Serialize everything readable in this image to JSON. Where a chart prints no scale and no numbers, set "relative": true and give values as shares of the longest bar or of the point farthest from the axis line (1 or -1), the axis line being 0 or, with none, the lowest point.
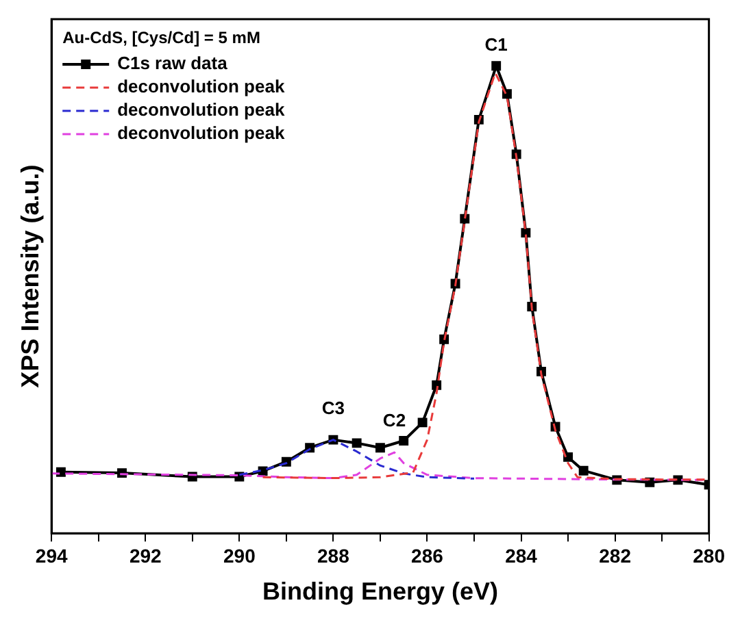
{
  "chart_data": {
    "type": "line",
    "relative": true,
    "legend_title": "Au-CdS, [Cys/Cd] = 5 mM",
    "xlabel": "Binding Energy (eV)",
    "ylabel": "XPS Intensity (a.u.)",
    "xlim": [
      294,
      280
    ],
    "xticks": [
      294,
      {
        "value": 293,
        "label": null
      },
      292,
      {
        "value": 291,
        "label": null
      },
      290,
      {
        "value": 289,
        "label": null
      },
      288,
      {
        "value": 287,
        "label": null
      },
      286,
      {
        "value": 285,
        "label": null
      },
      284,
      {
        "value": 283,
        "label": null
      },
      282,
      {
        "value": 281,
        "label": null
      },
      280
    ],
    "grid": false,
    "legend": "top left",
    "annotations": [
      {
        "text": "C1",
        "x": 284.53,
        "y": 1
      },
      {
        "text": "C2",
        "x": 286.7,
        "y": 0.173
      },
      {
        "text": "C3",
        "x": 288,
        "y": 0.2
      }
    ],
    "series": [
      {
        "name": "C1s raw data",
        "color": "#000000",
        "marker": "square",
        "line_style": "solid",
        "x": [
          293.8,
          292.5,
          291,
          290,
          289.5,
          289,
          288.5,
          288,
          287.5,
          287,
          286.5,
          286.1,
          285.8,
          285.64,
          285.4,
          285.2,
          284.9,
          284.53,
          284.3,
          284.1,
          283.9,
          283.77,
          283.57,
          283.27,
          283,
          282.67,
          281.96,
          281.26,
          280.66,
          280
        ],
        "values": [
          0.131,
          0.129,
          0.121,
          0.121,
          0.133,
          0.153,
          0.183,
          0.2,
          0.193,
          0.183,
          0.198,
          0.237,
          0.317,
          0.415,
          0.534,
          0.673,
          0.885,
          1,
          0.94,
          0.811,
          0.643,
          0.485,
          0.346,
          0.228,
          0.163,
          0.134,
          0.114,
          0.109,
          0.114,
          0.104
        ]
      },
      {
        "name": "deconvolution peak",
        "color": "#e83a3a",
        "marker": "none",
        "line_style": "dashed",
        "x": [
          289.5,
          288,
          287,
          286.3,
          286,
          285.8,
          285.64,
          285.4,
          285.2,
          284.9,
          284.55,
          284.3,
          284.1,
          283.9,
          283.77,
          283.57,
          283.27,
          283,
          282.8,
          282,
          281,
          280
        ],
        "values": [
          0.12,
          0.118,
          0.12,
          0.13,
          0.2,
          0.3,
          0.41,
          0.53,
          0.67,
          0.88,
          0.985,
          0.935,
          0.805,
          0.64,
          0.48,
          0.34,
          0.22,
          0.15,
          0.12,
          0.116,
          0.115,
          0.115
        ]
      },
      {
        "name": "deconvolution peak",
        "color": "#2a2ad0",
        "marker": "none",
        "line_style": "dashed",
        "x": [
          290,
          289.5,
          289,
          288.5,
          288,
          287.5,
          287,
          286.5,
          286,
          285
        ],
        "values": [
          0.125,
          0.135,
          0.15,
          0.18,
          0.2,
          0.175,
          0.145,
          0.128,
          0.12,
          0.117
        ]
      },
      {
        "name": "deconvolution peak",
        "color": "#e040e0",
        "marker": "none",
        "line_style": "dashed",
        "x": [
          294,
          292,
          290,
          289,
          288,
          287.5,
          287,
          286.7,
          286.5,
          286,
          285,
          283,
          282,
          280
        ],
        "values": [
          0.128,
          0.126,
          0.124,
          0.12,
          0.118,
          0.125,
          0.16,
          0.173,
          0.15,
          0.125,
          0.118,
          0.116,
          0.115,
          0.114
        ]
      }
    ]
  }
}
